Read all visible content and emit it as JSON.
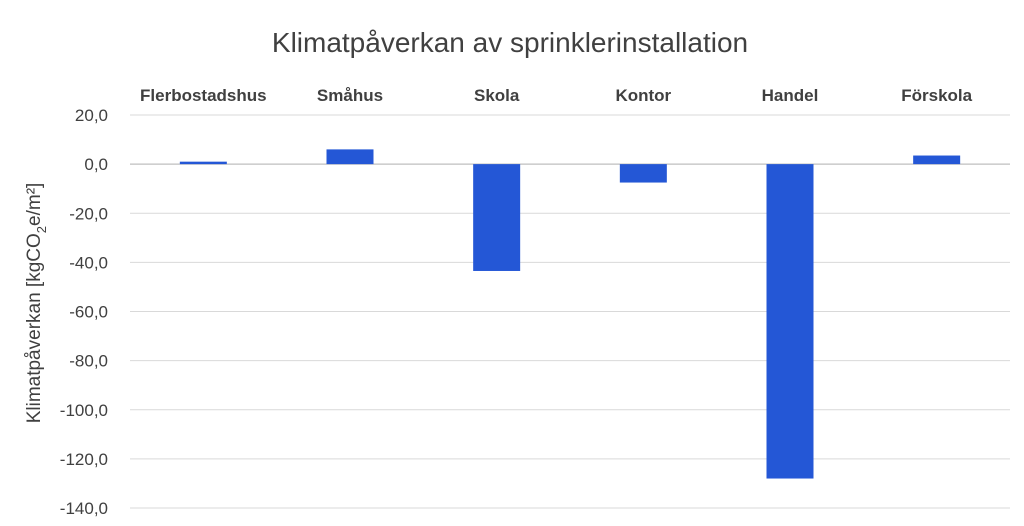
{
  "chart_data": {
    "type": "bar",
    "title": "Klimatpåverkan av sprinklerinstallation",
    "ylabel": {
      "main": "Klimatpåverkan [kgCO",
      "sub": "2",
      "rest": "e/m²]"
    },
    "categories": [
      "Flerbostadshus",
      "Småhus",
      "Skola",
      "Kontor",
      "Handel",
      "Förskola"
    ],
    "values": [
      1.0,
      6.0,
      -43.5,
      -7.5,
      -128.0,
      3.5
    ],
    "ylim": [
      -140,
      20
    ],
    "yticks": [
      20,
      0,
      -20,
      -40,
      -60,
      -80,
      -100,
      -120,
      -140
    ],
    "ytick_labels": [
      "20,0",
      "0,0",
      "-20,0",
      "-40,0",
      "-60,0",
      "-80,0",
      "-100,0",
      "-120,0",
      "-140,0"
    ],
    "grid": true,
    "legend": "none",
    "bar_color": "#2457d6"
  }
}
